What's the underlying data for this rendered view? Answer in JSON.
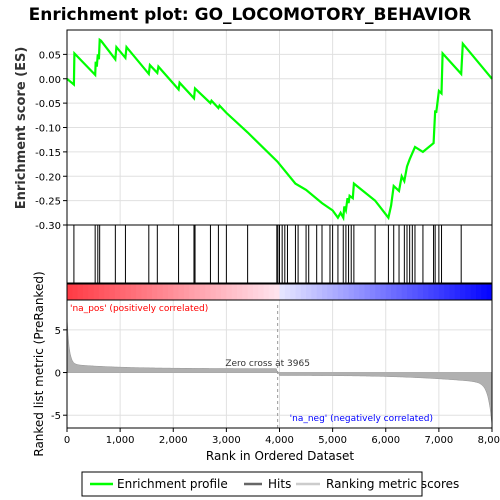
{
  "chart_data": {
    "type": "line",
    "title": "Enrichment plot: GO_LOCOMOTORY_BEHAVIOR",
    "es_panel": {
      "ylabel": "Enrichment score (ES)",
      "ylim": [
        -0.3,
        0.1
      ],
      "yticks": [
        0.05,
        0.0,
        -0.05,
        -0.1,
        -0.15,
        -0.2,
        -0.25,
        -0.3
      ],
      "ytick_labels": [
        "0.05",
        "0.00",
        "-0.05",
        "-0.10",
        "-0.15",
        "-0.20",
        "-0.25",
        "-0.30"
      ],
      "grid": true,
      "series": [
        {
          "name": "Enrichment profile",
          "color": "#00ff00",
          "x": [
            0,
            130,
            140,
            530,
            540,
            560,
            580,
            600,
            615,
            640,
            910,
            930,
            1100,
            1120,
            1540,
            1560,
            1700,
            1720,
            2100,
            2120,
            2390,
            2410,
            2700,
            2720,
            2850,
            2870,
            3000,
            3400,
            3960,
            4300,
            4500,
            4800,
            5000,
            5100,
            5150,
            5200,
            5220,
            5250,
            5280,
            5300,
            5320,
            5380,
            5400,
            5800,
            6050,
            6100,
            6150,
            6250,
            6300,
            6350,
            6400,
            6450,
            6550,
            6700,
            6900,
            6910,
            6930,
            6950,
            7000,
            7050,
            7070,
            7420,
            7450,
            8000
          ],
          "y": [
            0.0,
            -0.012,
            0.052,
            0.008,
            0.035,
            0.025,
            0.05,
            0.04,
            0.08,
            0.078,
            0.04,
            0.065,
            0.043,
            0.065,
            0.01,
            0.028,
            0.012,
            0.025,
            -0.022,
            -0.008,
            -0.04,
            -0.02,
            -0.05,
            -0.045,
            -0.06,
            -0.055,
            -0.07,
            -0.11,
            -0.17,
            -0.215,
            -0.228,
            -0.255,
            -0.27,
            -0.285,
            -0.275,
            -0.285,
            -0.262,
            -0.27,
            -0.245,
            -0.255,
            -0.24,
            -0.245,
            -0.215,
            -0.25,
            -0.285,
            -0.26,
            -0.22,
            -0.23,
            -0.2,
            -0.21,
            -0.18,
            -0.165,
            -0.14,
            -0.15,
            -0.132,
            -0.11,
            -0.065,
            -0.07,
            -0.025,
            -0.03,
            0.052,
            0.01,
            0.072,
            0.0
          ]
        }
      ]
    },
    "hits_panel": {
      "name": "Hits",
      "positions": [
        130,
        530,
        580,
        615,
        910,
        1100,
        1540,
        1700,
        2100,
        2390,
        2410,
        2700,
        2850,
        3000,
        3400,
        3950,
        3970,
        4000,
        4050,
        4100,
        4150,
        4300,
        4350,
        4500,
        4550,
        4700,
        4800,
        4950,
        5000,
        5100,
        5200,
        5250,
        5300,
        5350,
        5400,
        5800,
        6050,
        6150,
        6250,
        6350,
        6400,
        6450,
        6500,
        6550,
        6700,
        6900,
        6930,
        7000,
        7050,
        7420
      ]
    },
    "ranking_panel": {
      "name": "Ranking metric scores",
      "ylabel": "Ranked list metric (PreRanked)",
      "ylim": [
        -6.5,
        8.5
      ],
      "yticks": [
        5,
        0,
        -5
      ],
      "ytick_labels": [
        "5",
        "0",
        "-5"
      ],
      "zero_cross_label": "Zero cross at 3965",
      "zero_cross": 3965,
      "pos_label": "'na_pos' (positively correlated)",
      "neg_label": "'na_neg' (negatively correlated)",
      "pos_color": "#ff0000",
      "neg_color": "#0000ff"
    },
    "xlabel": "Rank in Ordered Dataset",
    "xlim": [
      0,
      8000
    ],
    "xticks": [
      0,
      1000,
      2000,
      3000,
      4000,
      5000,
      6000,
      7000,
      8000
    ],
    "xtick_labels": [
      "0",
      "1,000",
      "2,000",
      "3,000",
      "4,000",
      "5,000",
      "6,000",
      "7,000",
      "8,000"
    ],
    "legend": {
      "placement": "bottom",
      "items": [
        "Enrichment profile",
        "Hits",
        "Ranking metric scores"
      ]
    }
  }
}
